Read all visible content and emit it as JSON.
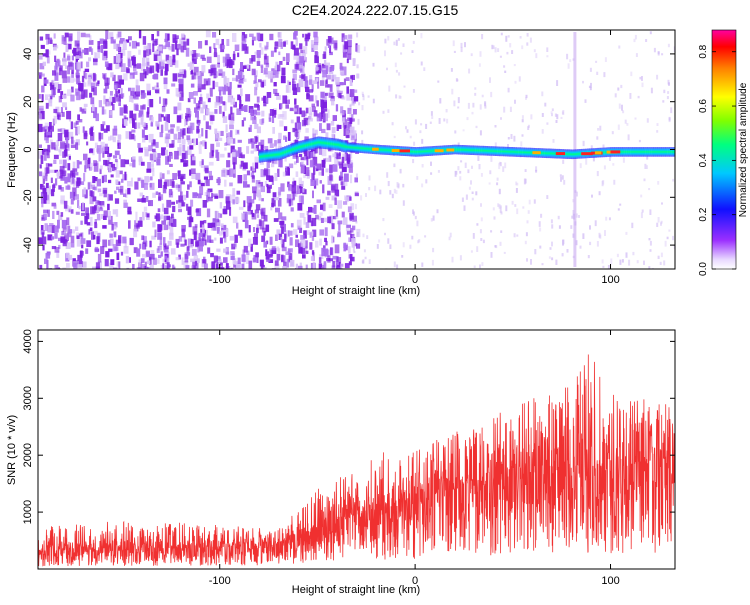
{
  "title": "C2E4.2024.222.07.15.G15",
  "colors": {
    "snr_line": "#f03030",
    "heatmap_low": "#e6d6f8",
    "heatmap_mid": "#8a2be2",
    "axis": "#000000"
  },
  "chart_data": [
    {
      "type": "heatmap",
      "title": "C2E4.2024.222.07.15.G15",
      "xlabel": "Height of straight line (km)",
      "ylabel": "Frequency (Hz)",
      "xlim": [
        -193,
        133
      ],
      "ylim": [
        -50,
        50
      ],
      "xticks": [
        -100,
        0,
        100
      ],
      "yticks": [
        -40,
        -20,
        0,
        20,
        40
      ],
      "colorbar": {
        "label": "Normalized spectral amplitude",
        "range": [
          0,
          0.88
        ],
        "ticks": [
          0.0,
          0.2,
          0.4,
          0.6,
          0.8
        ],
        "colormap": "rainbow (purple to red)"
      },
      "band_center_path": [
        {
          "x": -80,
          "y": -3
        },
        {
          "x": -70,
          "y": -2
        },
        {
          "x": -60,
          "y": 1
        },
        {
          "x": -50,
          "y": 3
        },
        {
          "x": -40,
          "y": 2
        },
        {
          "x": -35,
          "y": 1
        },
        {
          "x": -20,
          "y": 0
        },
        {
          "x": 0,
          "y": -1
        },
        {
          "x": 20,
          "y": 0
        },
        {
          "x": 50,
          "y": -1
        },
        {
          "x": 80,
          "y": -2
        },
        {
          "x": 100,
          "y": -1
        },
        {
          "x": 133,
          "y": -1
        }
      ],
      "noise_region_end_km": -35,
      "grid": false
    },
    {
      "type": "line",
      "xlabel": "Height of straight line (km)",
      "ylabel": "SNR (10 * v/v)",
      "xlim": [
        -193,
        133
      ],
      "ylim": [
        0,
        4200
      ],
      "xticks": [
        -100,
        0,
        100
      ],
      "yticks": [
        1000,
        2000,
        3000,
        4000
      ],
      "series": [
        {
          "x": [
            -190,
            -170,
            -150,
            -130,
            -110,
            -90,
            -70,
            -60,
            -50,
            -40,
            -30,
            -20,
            -10,
            0,
            10,
            20,
            30,
            40,
            50,
            60,
            70,
            80,
            90,
            100,
            110,
            120,
            130
          ],
          "y": [
            300,
            330,
            350,
            360,
            370,
            390,
            450,
            600,
            700,
            800,
            950,
            1050,
            1100,
            1200,
            1300,
            1400,
            1500,
            1550,
            1600,
            1700,
            1800,
            1850,
            1800,
            1800,
            1850,
            1900,
            1950
          ]
        }
      ],
      "envelope_max": {
        "x": [
          -190,
          -150,
          -110,
          -70,
          -50,
          -40,
          -30,
          -20,
          0,
          30,
          60,
          80,
          86,
          100,
          130
        ],
        "y": [
          750,
          850,
          800,
          700,
          1400,
          1600,
          1700,
          2150,
          2100,
          2600,
          3000,
          3300,
          4200,
          3100,
          2900
        ]
      },
      "grid": false
    }
  ]
}
